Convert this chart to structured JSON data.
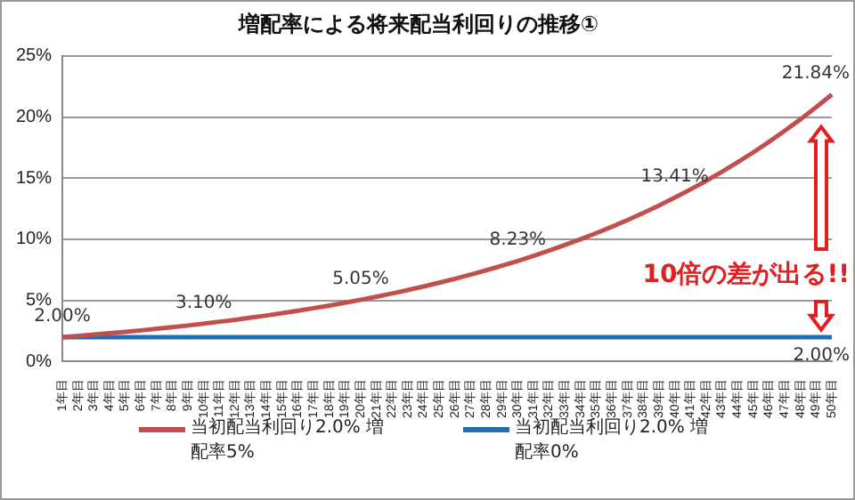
{
  "chart_data": {
    "type": "line",
    "title": "増配率による将来配当利回りの推移①",
    "categories": [
      "1年目",
      "2年目",
      "3年目",
      "4年目",
      "5年目",
      "6年目",
      "7年目",
      "8年目",
      "9年目",
      "10年目",
      "11年目",
      "12年目",
      "13年目",
      "14年目",
      "15年目",
      "16年目",
      "17年目",
      "18年目",
      "19年目",
      "20年目",
      "21年目",
      "22年目",
      "23年目",
      "24年目",
      "25年目",
      "26年目",
      "27年目",
      "28年目",
      "29年目",
      "30年目",
      "31年目",
      "32年目",
      "33年目",
      "34年目",
      "35年目",
      "36年目",
      "37年目",
      "38年目",
      "39年目",
      "40年目",
      "41年目",
      "42年目",
      "43年目",
      "44年目",
      "45年目",
      "46年目",
      "47年目",
      "48年目",
      "49年目",
      "50年目"
    ],
    "series": [
      {
        "name": "当初配当利回り2.0% 増配率5%",
        "color": "#c0504d",
        "values": [
          2.0,
          2.1,
          2.21,
          2.32,
          2.43,
          2.55,
          2.68,
          2.81,
          2.95,
          3.1,
          3.26,
          3.42,
          3.59,
          3.77,
          3.96,
          4.16,
          4.37,
          4.58,
          4.81,
          5.05,
          5.31,
          5.57,
          5.85,
          6.14,
          6.45,
          6.77,
          7.11,
          7.47,
          7.84,
          8.23,
          8.64,
          9.08,
          9.53,
          10.01,
          10.51,
          11.03,
          11.58,
          12.16,
          12.77,
          13.41,
          14.08,
          14.78,
          15.52,
          16.3,
          17.11,
          17.97,
          18.87,
          19.81,
          20.8,
          21.84
        ],
        "value_labels": [
          "2.00%",
          null,
          null,
          null,
          null,
          null,
          null,
          null,
          null,
          "3.10%",
          null,
          null,
          null,
          null,
          null,
          null,
          null,
          null,
          null,
          "5.05%",
          null,
          null,
          null,
          null,
          null,
          null,
          null,
          null,
          null,
          "8.23%",
          null,
          null,
          null,
          null,
          null,
          null,
          null,
          null,
          null,
          "13.41%",
          null,
          null,
          null,
          null,
          null,
          null,
          null,
          null,
          null,
          "21.84%"
        ]
      },
      {
        "name": "当初配当利回り2.0% 増配率0%",
        "color": "#1f6fb4",
        "values": [
          2,
          2,
          2,
          2,
          2,
          2,
          2,
          2,
          2,
          2,
          2,
          2,
          2,
          2,
          2,
          2,
          2,
          2,
          2,
          2,
          2,
          2,
          2,
          2,
          2,
          2,
          2,
          2,
          2,
          2,
          2,
          2,
          2,
          2,
          2,
          2,
          2,
          2,
          2,
          2,
          2,
          2,
          2,
          2,
          2,
          2,
          2,
          2,
          2,
          2
        ],
        "value_labels": [
          null,
          null,
          null,
          null,
          null,
          null,
          null,
          null,
          null,
          null,
          null,
          null,
          null,
          null,
          null,
          null,
          null,
          null,
          null,
          null,
          null,
          null,
          null,
          null,
          null,
          null,
          null,
          null,
          null,
          null,
          null,
          null,
          null,
          null,
          null,
          null,
          null,
          null,
          null,
          null,
          null,
          null,
          null,
          null,
          null,
          null,
          null,
          null,
          null,
          "2.00%"
        ]
      }
    ],
    "ylim": [
      0,
      25
    ],
    "yticks": [
      {
        "value": 0,
        "label": "0%"
      },
      {
        "value": 5,
        "label": "5%"
      },
      {
        "value": 10,
        "label": "10%"
      },
      {
        "value": 15,
        "label": "15%"
      },
      {
        "value": 20,
        "label": "20%"
      },
      {
        "value": 25,
        "label": "25%"
      }
    ],
    "grid": "y",
    "legend": "bottom",
    "marker": "none",
    "line_style": "solid",
    "annotations": [
      "10倍の差が出る!!"
    ]
  }
}
